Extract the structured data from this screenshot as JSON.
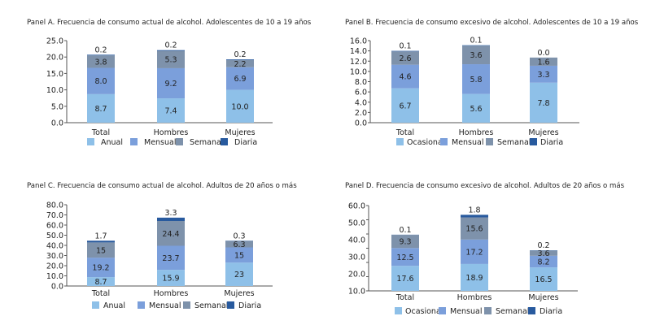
{
  "colors": {
    "level1": "#8ec0e8",
    "level2": "#7b9fdb",
    "level3": "#7e92ab",
    "level4": "#285a9e"
  },
  "chart_data": [
    {
      "type": "bar",
      "stacked": true,
      "title": "Panel A. Frecuencia de consumo actual de alcohol. Adolescentes de 10 a 19 años",
      "categories": [
        "Total",
        "Hombres",
        "Mujeres"
      ],
      "yticks": [
        "0.0",
        "5.0",
        "10.0",
        "15.0",
        "20.0",
        "25.0"
      ],
      "ylim": [
        0,
        25
      ],
      "legend_position": "bottom",
      "series": [
        {
          "name": "Anual",
          "values": [
            8.7,
            7.4,
            10.0
          ],
          "labels": [
            "8.7",
            "7.4",
            "10.0"
          ]
        },
        {
          "name": "Mensual",
          "values": [
            8.0,
            9.2,
            6.9
          ],
          "labels": [
            "8.0",
            "9.2",
            "6.9"
          ]
        },
        {
          "name": "Semanal",
          "values": [
            3.8,
            5.3,
            2.2
          ],
          "labels": [
            "3.8",
            "5.3",
            "2.2"
          ]
        },
        {
          "name": "Diaria",
          "values": [
            0.2,
            0.2,
            0.2
          ],
          "labels": [
            "0.2",
            "0.2",
            "0.2"
          ]
        }
      ]
    },
    {
      "type": "bar",
      "stacked": true,
      "title": "Panel B. Frecuencia de consumo excesivo de alcohol. Adolescentes de 10 a 19 años",
      "categories": [
        "Total",
        "Hombres",
        "Mujeres"
      ],
      "yticks": [
        "0.0",
        "2.0",
        "4.0",
        "6.0",
        "8.0",
        "10.0",
        "12.0",
        "14.0",
        "16.0"
      ],
      "ylim": [
        0,
        16
      ],
      "legend_position": "bottom",
      "series": [
        {
          "name": "Ocasional",
          "values": [
            6.7,
            5.6,
            7.8
          ],
          "labels": [
            "6.7",
            "5.6",
            "7.8"
          ]
        },
        {
          "name": "Mensual",
          "values": [
            4.6,
            5.8,
            3.3
          ],
          "labels": [
            "4.6",
            "5.8",
            "3.3"
          ]
        },
        {
          "name": "Semanal",
          "values": [
            2.6,
            3.6,
            1.6
          ],
          "labels": [
            "2.6",
            "3.6",
            "1.6"
          ]
        },
        {
          "name": "Diaria",
          "values": [
            0.1,
            0.1,
            0.0
          ],
          "labels": [
            "0.1",
            "0.1",
            "0.0"
          ]
        }
      ]
    },
    {
      "type": "bar",
      "stacked": true,
      "title": "Panel C. Frecuencia de consumo actual de alcohol. Adultos de 20 años o más",
      "categories": [
        "Total",
        "Hombres",
        "Mujeres"
      ],
      "yticks": [
        "0.0",
        "10.0",
        "20.0",
        "30.0",
        "40.0",
        "50.0",
        "60.0",
        "70.0",
        "80.0"
      ],
      "ylim": [
        0,
        80
      ],
      "legend_position": "bottom",
      "series": [
        {
          "name": "Anual",
          "values": [
            8.7,
            15.9,
            23
          ],
          "labels": [
            "8.7",
            "15.9",
            "23"
          ]
        },
        {
          "name": "Mensual",
          "values": [
            19.2,
            23.7,
            15
          ],
          "labels": [
            "19.2",
            "23.7",
            "15"
          ]
        },
        {
          "name": "Semanal",
          "values": [
            15,
            24.4,
            6.3
          ],
          "labels": [
            "15",
            "24.4",
            "6.3"
          ]
        },
        {
          "name": "Diaria",
          "values": [
            1.7,
            3.3,
            0.3
          ],
          "labels": [
            "1.7",
            "3.3",
            "0.3"
          ]
        }
      ]
    },
    {
      "type": "bar",
      "stacked": true,
      "title": "Panel D. Frecuencia de consumo excesivo de alcohol. Adultos de 20 años o más",
      "categories": [
        "Total",
        "Hombres",
        "Mujeres"
      ],
      "yticks": [
        "10.0",
        "20.0",
        "30.0",
        "40.0",
        "50.0",
        "60.0"
      ],
      "ylim": [
        0,
        60
      ],
      "legend_position": "bottom",
      "series": [
        {
          "name": "Ocasional",
          "values": [
            17.6,
            18.9,
            16.5
          ],
          "labels": [
            "17.6",
            "18.9",
            "16.5"
          ]
        },
        {
          "name": "Mensual",
          "values": [
            12.5,
            17.2,
            8.2
          ],
          "labels": [
            "12.5",
            "17.2",
            "8.2"
          ]
        },
        {
          "name": "Semanal",
          "values": [
            9.3,
            15.6,
            3.6
          ],
          "labels": [
            "9.3",
            "15.6",
            "3.6"
          ]
        },
        {
          "name": "Diaria",
          "values": [
            0.1,
            1.8,
            0.2
          ],
          "labels": [
            "0.1",
            "1.8",
            "0.2"
          ]
        }
      ]
    }
  ]
}
